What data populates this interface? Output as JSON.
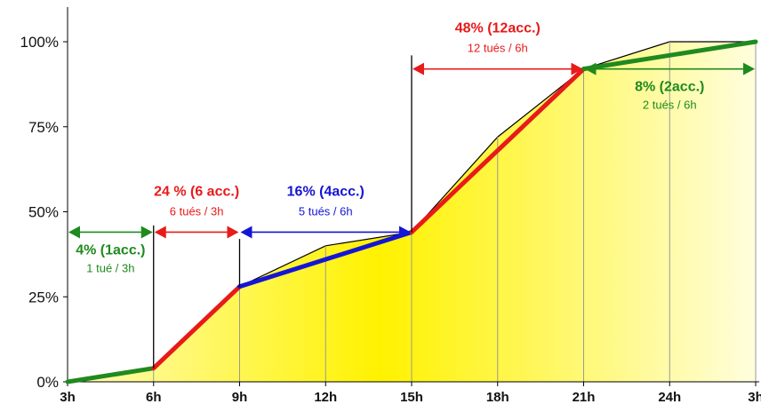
{
  "colors": {
    "fill_light": "#fffee0",
    "fill_strong": "#fff200",
    "outline": "#000000",
    "grid": "#999999",
    "green": "#1f8a1f",
    "red": "#e81a1a",
    "blue": "#1515d6"
  },
  "chart_data": {
    "type": "area",
    "title": "",
    "xlabel": "",
    "ylabel": "",
    "x_categories": [
      "3h",
      "6h",
      "9h",
      "12h",
      "15h",
      "18h",
      "21h",
      "24h",
      "3h"
    ],
    "y_tick_labels": [
      "0%",
      "25%",
      "50%",
      "75%",
      "100%"
    ],
    "ylim": [
      0,
      100
    ],
    "grid": "vertical",
    "series": [
      {
        "kind": "cumulative-area",
        "values": [
          0,
          4,
          28,
          40,
          44,
          72,
          92,
          100,
          100
        ]
      }
    ],
    "segments": [
      {
        "from_index": 0,
        "to_index": 1,
        "y_from": 0,
        "y_to": 4,
        "color": "green"
      },
      {
        "from_index": 1,
        "to_index": 2,
        "y_from": 4,
        "y_to": 28,
        "color": "red"
      },
      {
        "from_index": 2,
        "to_index": 4,
        "y_from": 28,
        "y_to": 44,
        "color": "blue"
      },
      {
        "from_index": 4,
        "to_index": 6,
        "y_from": 44,
        "y_to": 92,
        "color": "red"
      },
      {
        "from_index": 6,
        "to_index": 8,
        "y_from": 92,
        "y_to": 100,
        "color": "green"
      }
    ],
    "annotations": [
      {
        "title": "4% (1acc.)",
        "subtitle": "1 tué / 3h",
        "color": "green",
        "from_index": 0,
        "to_index": 1,
        "level": 44
      },
      {
        "title": "24 % (6 acc.)",
        "subtitle": "6 tués  / 3h",
        "color": "red",
        "from_index": 1,
        "to_index": 2,
        "level": 44
      },
      {
        "title": "16% (4acc.)",
        "subtitle": "5 tués / 6h",
        "color": "blue",
        "from_index": 2,
        "to_index": 4,
        "level": 44
      },
      {
        "title": "48% (12acc.)",
        "subtitle": "12 tués / 6h",
        "color": "red",
        "from_index": 4,
        "to_index": 6,
        "level": 92
      },
      {
        "title": "8% (2acc.)",
        "subtitle": "2 tués / 6h",
        "color": "green",
        "from_index": 6,
        "to_index": 8,
        "level": 92
      }
    ]
  }
}
